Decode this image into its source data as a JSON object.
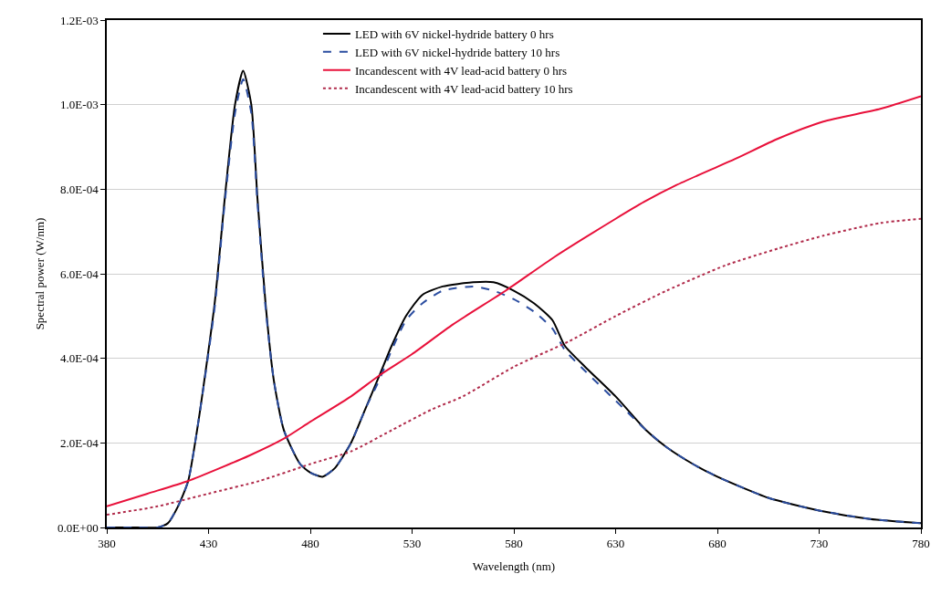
{
  "chart_data": {
    "type": "line",
    "xlabel": "Wavelength (nm)",
    "ylabel": "Spectral power (W/nm)",
    "xlim": [
      380,
      780
    ],
    "xticks": [
      380,
      430,
      480,
      530,
      580,
      630,
      680,
      730,
      780
    ],
    "ylim": [
      0,
      0.0012
    ],
    "yticks": [
      {
        "value": 0,
        "label": "0.0E+00"
      },
      {
        "value": 0.0002,
        "label": "2.0E-04"
      },
      {
        "value": 0.0004,
        "label": "4.0E-04"
      },
      {
        "value": 0.0006,
        "label": "6.0E-04"
      },
      {
        "value": 0.0008,
        "label": "8.0E-04"
      },
      {
        "value": 0.001,
        "label": "1.0E-03"
      },
      {
        "value": 0.0012,
        "label": "1.2E-03"
      }
    ],
    "grid": "y",
    "legend": "top",
    "marker": "none",
    "series": [
      {
        "name": "LED with 6V nickel-hydride battery 0 hrs",
        "color": "#000000",
        "line_style": "solid",
        "x": [
          380,
          395,
          405,
          410,
          415,
          420,
          425,
          433,
          438,
          443,
          447,
          451,
          454,
          458,
          462,
          467,
          475,
          480,
          486,
          492,
          500,
          507,
          514,
          520,
          527,
          535,
          545,
          560,
          570,
          580,
          590,
          599,
          605,
          615,
          630,
          645,
          655,
          668,
          680,
          705,
          730,
          755,
          780
        ],
        "values": [
          0,
          0,
          0,
          1e-05,
          5e-05,
          0.00011,
          0.00025,
          0.00053,
          0.00078,
          0.001,
          0.00108,
          0.001,
          0.00078,
          0.00053,
          0.00035,
          0.00023,
          0.00015,
          0.00013,
          0.00012,
          0.00014,
          0.0002,
          0.00028,
          0.00036,
          0.00043,
          0.0005,
          0.00055,
          0.00057,
          0.00058,
          0.00058,
          0.00056,
          0.00053,
          0.00049,
          0.00043,
          0.00038,
          0.00031,
          0.00023,
          0.00019,
          0.00015,
          0.00012,
          7e-05,
          4e-05,
          2e-05,
          1e-05
        ]
      },
      {
        "name": "LED with 6V nickel-hydride battery 10 hrs",
        "color": "#2b4da0",
        "line_style": "dashed",
        "x": [
          380,
          395,
          405,
          410,
          415,
          420,
          425,
          433,
          438,
          443,
          447,
          451,
          454,
          458,
          462,
          467,
          475,
          480,
          486,
          492,
          500,
          507,
          514,
          520,
          527,
          535,
          545,
          560,
          570,
          580,
          590,
          599,
          605,
          615,
          630,
          645,
          655,
          668,
          680,
          705,
          730,
          755,
          780
        ],
        "values": [
          0,
          0,
          0,
          1e-05,
          5e-05,
          0.00011,
          0.00025,
          0.00052,
          0.00077,
          0.00098,
          0.00106,
          0.00098,
          0.00077,
          0.00052,
          0.00035,
          0.00023,
          0.00015,
          0.00013,
          0.00012,
          0.00014,
          0.0002,
          0.00028,
          0.00035,
          0.00042,
          0.00049,
          0.00053,
          0.00056,
          0.00057,
          0.00056,
          0.00054,
          0.00051,
          0.00047,
          0.00042,
          0.00037,
          0.0003,
          0.00023,
          0.00019,
          0.00015,
          0.00012,
          7e-05,
          4e-05,
          2e-05,
          1e-05
        ]
      },
      {
        "name": "Incandescent with 4V lead-acid battery 0 hrs",
        "color": "#e8103a",
        "line_style": "solid",
        "x": [
          380,
          400,
          420,
          450,
          467,
          480,
          500,
          514,
          530,
          550,
          576,
          600,
          630,
          644,
          660,
          688,
          710,
          732,
          760,
          780
        ],
        "values": [
          5e-05,
          8e-05,
          0.00011,
          0.00017,
          0.00021,
          0.00025,
          0.00031,
          0.00036,
          0.00041,
          0.00048,
          0.00056,
          0.00064,
          0.00073,
          0.00077,
          0.00081,
          0.00087,
          0.00092,
          0.00096,
          0.00099,
          0.00102
        ]
      },
      {
        "name": "Incandescent with 4V lead-acid battery 10 hrs",
        "color": "#b02a4a",
        "line_style": "dotted",
        "x": [
          380,
          405,
          430,
          455,
          480,
          500,
          520,
          540,
          555,
          580,
          607,
          630,
          655,
          684,
          710,
          732,
          760,
          780
        ],
        "values": [
          3e-05,
          5e-05,
          8e-05,
          0.00011,
          0.00015,
          0.00018,
          0.00023,
          0.00028,
          0.00031,
          0.00038,
          0.00044,
          0.0005,
          0.00056,
          0.00062,
          0.00066,
          0.00069,
          0.00072,
          0.00073
        ]
      }
    ]
  }
}
